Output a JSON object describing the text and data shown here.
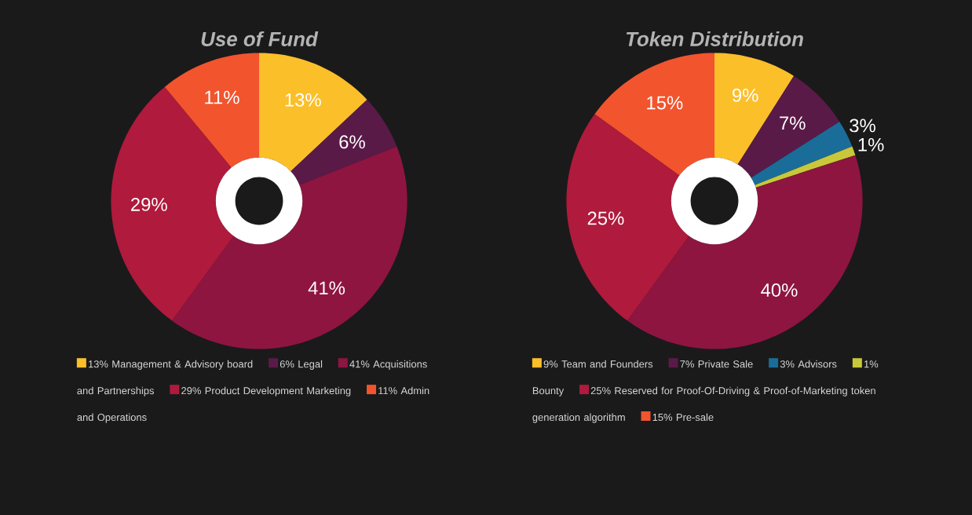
{
  "chart_data": [
    {
      "type": "donut",
      "title": "Use of Fund",
      "categories": [
        "13% Management & Advisory board",
        "6% Legal",
        "41% Acquisitions and Partnerships",
        "29% Product Development Marketing",
        "11% Admin and Operations"
      ],
      "values": [
        13,
        6,
        41,
        29,
        11
      ],
      "colors": [
        "#fbbf2a",
        "#5a1a48",
        "#8e1540",
        "#b01a3c",
        "#f2542e"
      ],
      "value_labels": [
        "13%",
        "6%",
        "41%",
        "29%",
        "11%"
      ],
      "legend": "bottom"
    },
    {
      "type": "donut",
      "title": "Token Distribution",
      "categories": [
        "9% Team and Founders",
        "7% Private Sale",
        "3% Advisors",
        "1% Bounty",
        null,
        "25% Reserved for Proof-Of-Driving & Proof-of-Marketing token generation algorithm",
        "15% Pre-sale"
      ],
      "values": [
        9,
        7,
        3,
        1,
        40,
        25,
        15
      ],
      "colors": [
        "#fbbf2a",
        "#5a1a48",
        "#1a6d98",
        "#c8c83a",
        "#8e1540",
        "#b01a3c",
        "#f2542e"
      ],
      "value_labels": [
        "9%",
        "7%",
        "3%",
        "1%",
        "40%",
        "25%",
        "15%"
      ],
      "legend": "bottom"
    }
  ]
}
